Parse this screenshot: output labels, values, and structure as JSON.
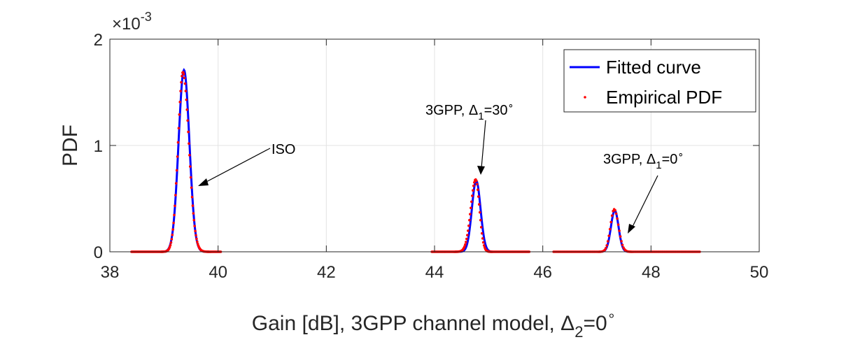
{
  "chart_data": {
    "type": "line",
    "title": "",
    "xlabel": {
      "text": "Gain [dB], 3GPP channel model, ",
      "symbol": "Δ",
      "sub": "2",
      "eq": "=0",
      "sup": "∘"
    },
    "ylabel": "PDF",
    "xlim": [
      38,
      50
    ],
    "ylim": [
      0,
      0.002
    ],
    "x_ticks": [
      38,
      40,
      42,
      44,
      46,
      48,
      50
    ],
    "y_ticks": [
      {
        "value": 0,
        "label": "0"
      },
      {
        "value": 0.001,
        "label": "1"
      },
      {
        "value": 0.002,
        "label": "2"
      }
    ],
    "y_multiplier": {
      "base": "×10",
      "exp": "-3"
    },
    "grid": true,
    "legend": {
      "placement": "top-right",
      "entries": [
        {
          "name": "Fitted curve",
          "color": "#0000ff",
          "style": "line"
        },
        {
          "name": "Empirical PDF",
          "color": "#ff0000",
          "style": "dots"
        }
      ]
    },
    "series": [
      {
        "name": "Fitted curve",
        "color": "#0000ff",
        "peaks": [
          {
            "range": [
              38.4,
              40.05
            ],
            "mu": 39.37,
            "sigma_left": 0.1,
            "sigma_right": 0.1,
            "peak": 0.00171
          },
          {
            "range": [
              43.95,
              45.75
            ],
            "mu": 44.77,
            "sigma_left": 0.08,
            "sigma_right": 0.08,
            "peak": 0.00067
          },
          {
            "range": [
              46.2,
              48.9
            ],
            "mu": 47.33,
            "sigma_left": 0.07,
            "sigma_right": 0.07,
            "peak": 0.00039
          }
        ]
      },
      {
        "name": "Empirical PDF",
        "color": "#ff0000",
        "peaks": [
          {
            "range": [
              38.4,
              40.05
            ],
            "mu": 39.35,
            "sigma_left": 0.09,
            "sigma_right": 0.11,
            "peak": 0.00169
          },
          {
            "range": [
              43.95,
              45.75
            ],
            "mu": 44.76,
            "sigma_left": 0.09,
            "sigma_right": 0.07,
            "peak": 0.00068
          },
          {
            "range": [
              46.2,
              48.9
            ],
            "mu": 47.32,
            "sigma_left": 0.07,
            "sigma_right": 0.08,
            "peak": 0.0004
          }
        ]
      }
    ],
    "annotations": [
      {
        "id": "iso",
        "main": "ISO",
        "sub": "",
        "tail": "",
        "sup": ""
      },
      {
        "id": "g30",
        "main": "3GPP, Δ",
        "sub": "1",
        "tail": "=30",
        "sup": "∘"
      },
      {
        "id": "g0",
        "main": "3GPP, Δ",
        "sub": "1",
        "tail": "=0",
        "sup": "∘"
      }
    ]
  }
}
